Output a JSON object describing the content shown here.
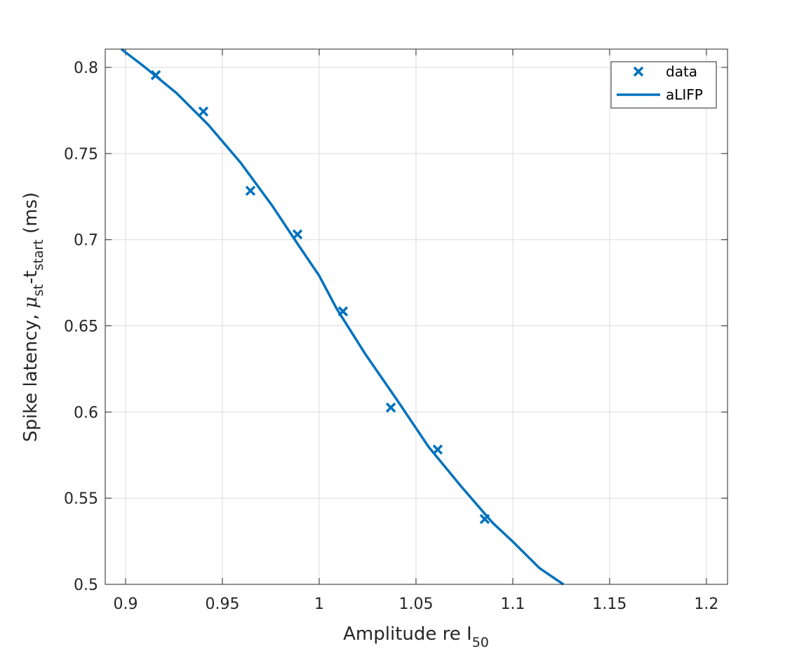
{
  "chart_data": {
    "type": "line",
    "title": "",
    "xlabel_parts": [
      "Amplitude re I",
      "50"
    ],
    "ylabel_parts": [
      "Spike latency, ",
      "μ",
      "st",
      "-t",
      "start",
      " (ms)"
    ],
    "xlim": [
      0.8895,
      1.2109
    ],
    "ylim": [
      0.5,
      0.8106
    ],
    "xticks": [
      0.9,
      0.95,
      1,
      1.05,
      1.1,
      1.15,
      1.2
    ],
    "xtick_labels": [
      "0.9",
      "0.95",
      "1",
      "1.05",
      "1.1",
      "1.15",
      "1.2"
    ],
    "yticks": [
      0.5,
      0.55,
      0.6,
      0.65,
      0.7,
      0.75,
      0.8
    ],
    "ytick_labels": [
      "0.5",
      "0.55",
      "0.6",
      "0.65",
      "0.7",
      "0.75",
      "0.8"
    ],
    "grid": true,
    "legend_position": "top-right",
    "series": [
      {
        "name": "data",
        "style": "markers-x",
        "color": "#0072BD",
        "x": [
          0.9156,
          0.9402,
          0.9645,
          0.9888,
          1.0123,
          1.037,
          1.0612,
          1.0855
        ],
        "y": [
          0.7955,
          0.7744,
          0.7284,
          0.7031,
          0.6584,
          0.6026,
          0.5782,
          0.5379
        ]
      },
      {
        "name": "aLIFP",
        "style": "line",
        "color": "#0072BD",
        "x": [
          0.8978,
          0.909,
          0.9264,
          0.9428,
          0.9594,
          0.9757,
          0.988,
          1.0,
          1.009,
          1.0239,
          1.0402,
          1.0565,
          1.0732,
          1.0895,
          1.1,
          1.1138,
          1.1261
        ],
        "y": [
          0.8106,
          0.801,
          0.785,
          0.7666,
          0.7447,
          0.7198,
          0.699,
          0.6791,
          0.66,
          0.6335,
          0.607,
          0.5798,
          0.557,
          0.5358,
          0.5248,
          0.5094,
          0.5
        ]
      }
    ]
  }
}
